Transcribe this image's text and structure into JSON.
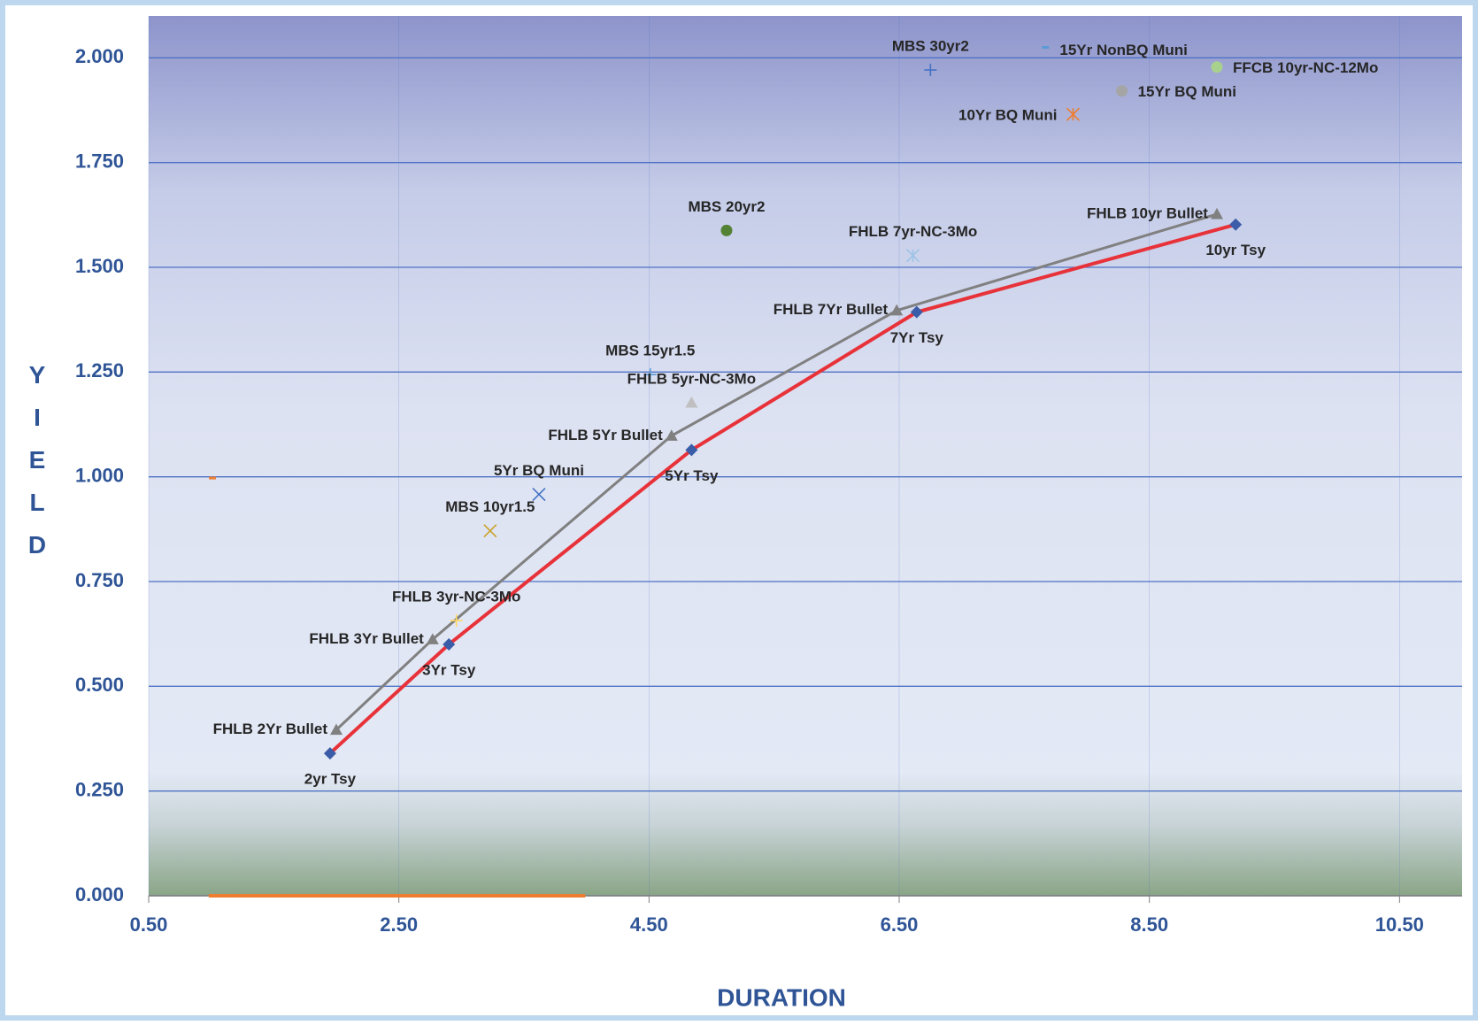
{
  "chart_data": {
    "type": "scatter",
    "x_label": "DURATION",
    "y_label": "YIELD",
    "xlim": [
      0.5,
      11.0
    ],
    "ylim": [
      0,
      2.1
    ],
    "xticks": [
      {
        "value": 0.5,
        "label": "0.50"
      },
      {
        "value": 2.5,
        "label": "2.50"
      },
      {
        "value": 4.5,
        "label": "4.50"
      },
      {
        "value": 6.5,
        "label": "6.50"
      },
      {
        "value": 8.5,
        "label": "8.50"
      },
      {
        "value": 10.5,
        "label": "10.50"
      }
    ],
    "yticks": [
      {
        "value": 0,
        "label": "0.000"
      },
      {
        "value": 0.25,
        "label": "0.250"
      },
      {
        "value": 0.5,
        "label": "0.500"
      },
      {
        "value": 0.75,
        "label": "0.750"
      },
      {
        "value": 1.0,
        "label": "1.000"
      },
      {
        "value": 1.25,
        "label": "1.250"
      },
      {
        "value": 1.5,
        "label": "1.500"
      },
      {
        "value": 1.75,
        "label": "1.750"
      },
      {
        "value": 2.0,
        "label": "2.000"
      }
    ],
    "grid": true,
    "series": [
      {
        "line": true,
        "marker": "diamond",
        "color": "#e8323a",
        "marker_color": "#3b5ca8",
        "x": [
          1.95,
          2.9,
          4.84,
          6.64,
          9.19
        ],
        "values": [
          0.34,
          0.6,
          1.064,
          1.393,
          1.602
        ],
        "labels": [
          "2yr Tsy",
          "3Yr Tsy",
          "5Yr Tsy",
          "7Yr Tsy",
          "10yr Tsy"
        ]
      },
      {
        "line": true,
        "marker": "triangle",
        "color": "#808080",
        "marker_color": "#808080",
        "x": [
          2.0,
          2.77,
          4.68,
          6.48,
          9.04
        ],
        "values": [
          0.396,
          0.612,
          1.098,
          1.397,
          1.627
        ],
        "labels": [
          "FHLB 2Yr Bullet",
          "FHLB 3Yr Bullet",
          "FHLB 5Yr Bullet",
          "FHLB 7Yr Bullet",
          "FHLB 10yr Bullet"
        ]
      },
      {
        "name": "MBS 30yr2",
        "marker": "plus",
        "color": "#4472c4",
        "x": [
          6.75
        ],
        "values": [
          1.971
        ]
      },
      {
        "name": "15Yr NonBQ Muni",
        "marker": "dash",
        "color": "#5b9bd5",
        "x": [
          7.67
        ],
        "values": [
          2.025
        ]
      },
      {
        "name": "FFCB 10yr-NC-12Mo",
        "marker": "circle",
        "color": "#a9d18e",
        "x": [
          9.04
        ],
        "values": [
          1.978
        ]
      },
      {
        "name": "15Yr BQ Muni",
        "marker": "circle",
        "color": "#a5a5a5",
        "x": [
          8.28
        ],
        "values": [
          1.921
        ]
      },
      {
        "name": "10Yr BQ Muni",
        "marker": "star",
        "color": "#ed7d31",
        "x": [
          7.89
        ],
        "values": [
          1.865
        ]
      },
      {
        "name": "MBS 20yr2",
        "marker": "circle",
        "color": "#548235",
        "x": [
          5.12
        ],
        "values": [
          1.588
        ]
      },
      {
        "name": "FHLB 7yr-NC-3Mo",
        "marker": "star",
        "color": "#9dc3e6",
        "x": [
          6.61
        ],
        "values": [
          1.528
        ]
      },
      {
        "name": "MBS 15yr1.5",
        "marker": "plus",
        "color": "#5b9bd5",
        "x": [
          4.51
        ],
        "values": [
          1.244
        ]
      },
      {
        "name": "FHLB 5yr-NC-3Mo",
        "marker": "triangle",
        "color": "#bfbfbf",
        "x": [
          4.84
        ],
        "values": [
          1.177
        ]
      },
      {
        "name": "5Yr BQ Muni",
        "marker": "x",
        "color": "#4472c4",
        "x": [
          3.62
        ],
        "values": [
          0.958
        ]
      },
      {
        "name": "MBS 10yr1.5",
        "marker": "x",
        "color": "#c9a227",
        "x": [
          3.23
        ],
        "values": [
          0.871
        ]
      },
      {
        "name": "FHLB 3yr-NC-3Mo",
        "marker": "plus",
        "color": "#ffd966",
        "x": [
          2.96
        ],
        "values": [
          0.657
        ]
      },
      {
        "marker": "dash",
        "color": "#ed7d31",
        "x": [
          1.01
        ],
        "values": [
          0.997
        ]
      },
      {
        "line": true,
        "color": "#ed7d31",
        "x": [
          0.98,
          3.99
        ],
        "values": [
          0,
          0
        ]
      }
    ]
  }
}
